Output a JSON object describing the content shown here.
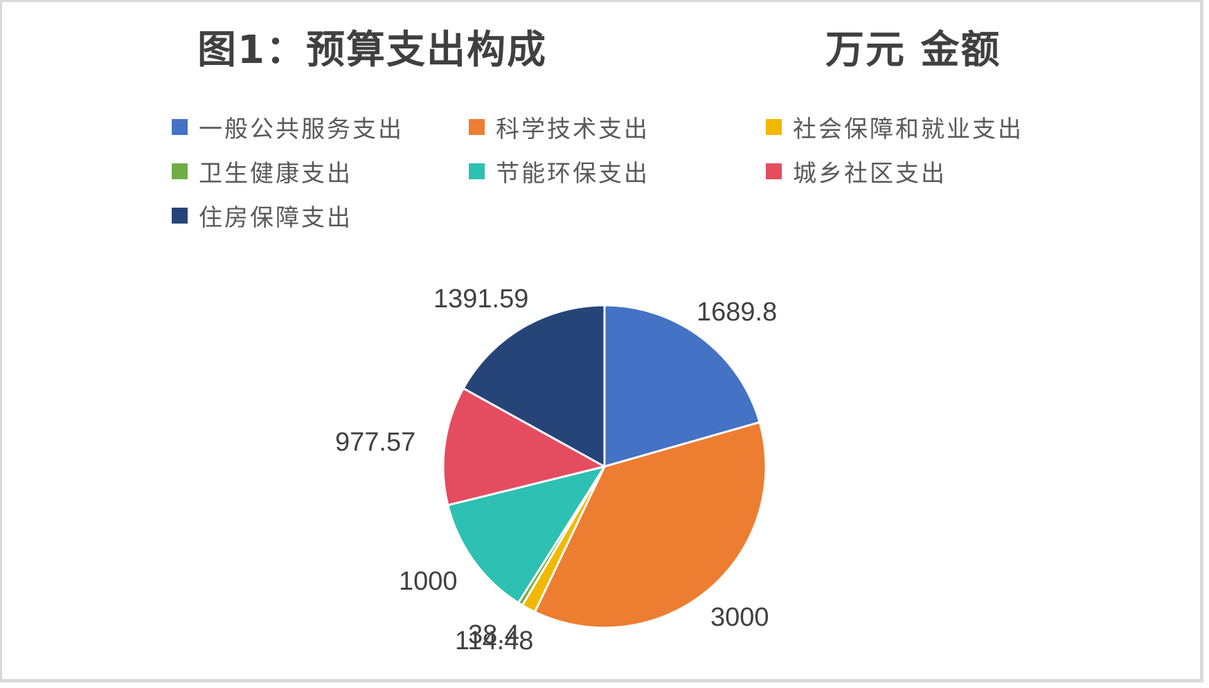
{
  "chart_data": {
    "type": "pie",
    "title": "图1：预算支出构成",
    "subtitle": "万元 金额",
    "categories": [
      "一般公共服务支出",
      "科学技术支出",
      "社会保障和就业支出",
      "卫生健康支出",
      "节能环保支出",
      "城乡社区支出",
      "住房保障支出"
    ],
    "values": [
      1689.8,
      3000,
      114.48,
      38.4,
      1000,
      977.57,
      1391.59
    ],
    "colors": [
      "#4472c4",
      "#ed7d31",
      "#f2b800",
      "#70ad47",
      "#2ec0b2",
      "#e44d60",
      "#264478"
    ],
    "data_labels": [
      "1689.8",
      "3000",
      "114.48",
      "38.4",
      "1000",
      "977.57",
      "1391.59"
    ],
    "unit": "万元",
    "legend_position": "top",
    "start_angle_deg": 0,
    "direction": "clockwise"
  },
  "title": {
    "main": "图1：预算支出构成",
    "sub": "万元 金额"
  },
  "legend": [
    {
      "label": "一般公共服务支出",
      "color": "#4472c4"
    },
    {
      "label": "科学技术支出",
      "color": "#ed7d31"
    },
    {
      "label": "社会保障和就业支出",
      "color": "#f2b800"
    },
    {
      "label": "卫生健康支出",
      "color": "#70ad47"
    },
    {
      "label": "节能环保支出",
      "color": "#2ec0b2"
    },
    {
      "label": "城乡社区支出",
      "color": "#e44d60"
    },
    {
      "label": "住房保障支出",
      "color": "#264478"
    }
  ],
  "data_labels": [
    "1689.8",
    "3000",
    "114.48",
    "38.4",
    "1000",
    "977.57",
    "1391.59"
  ]
}
